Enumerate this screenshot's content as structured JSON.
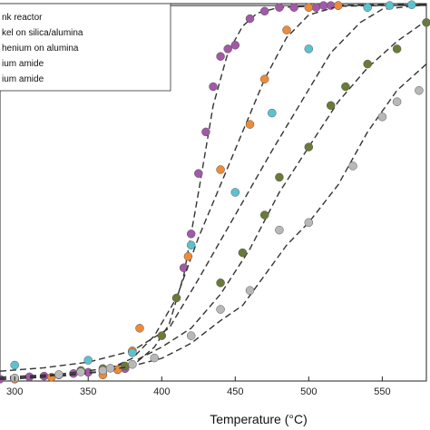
{
  "chart_data": {
    "type": "scatter",
    "title": "",
    "xlabel": "Temperature (°C)",
    "ylabel": "",
    "xlim": [
      290,
      580
    ],
    "ylim": [
      0,
      100
    ],
    "x_ticks": [
      300,
      350,
      400,
      450,
      500,
      550
    ],
    "grid": false,
    "legend_position": "top-left",
    "legend_visible_text": [
      "nk reactor",
      "kel on silica/alumina",
      "henium on alumina",
      "ium amide",
      "ium amide"
    ],
    "series": [
      {
        "color": "#a259a8",
        "points": [
          [
            290,
            0.5
          ],
          [
            300,
            0.7
          ],
          [
            310,
            1.1
          ],
          [
            320,
            1.3
          ],
          [
            330,
            1.6
          ],
          [
            340,
            2.0
          ],
          [
            350,
            2.3
          ],
          [
            360,
            2.6
          ],
          [
            370,
            3.0
          ],
          [
            375,
            3.3
          ],
          [
            415,
            30
          ],
          [
            420,
            39
          ],
          [
            425,
            55
          ],
          [
            430,
            66
          ],
          [
            435,
            78
          ],
          [
            440,
            86
          ],
          [
            445,
            88
          ],
          [
            450,
            89
          ],
          [
            460,
            96
          ],
          [
            470,
            98
          ],
          [
            480,
            99
          ],
          [
            490,
            99
          ],
          [
            505,
            99
          ],
          [
            510,
            99.5
          ],
          [
            515,
            99.5
          ],
          [
            520,
            99.5
          ]
        ],
        "curve": [
          [
            290,
            0.4
          ],
          [
            330,
            1.3
          ],
          [
            360,
            2.5
          ],
          [
            380,
            4
          ],
          [
            395,
            9
          ],
          [
            405,
            15
          ],
          [
            415,
            28
          ],
          [
            425,
            50
          ],
          [
            435,
            73
          ],
          [
            445,
            87
          ],
          [
            455,
            94
          ],
          [
            465,
            97.5
          ],
          [
            480,
            99
          ],
          [
            520,
            99.6
          ],
          [
            580,
            99.8
          ]
        ]
      },
      {
        "color": "#ef8a36",
        "points": [
          [
            300,
            0.5
          ],
          [
            325,
            1.0
          ],
          [
            360,
            1.6
          ],
          [
            370,
            3.0
          ],
          [
            380,
            8
          ],
          [
            385,
            14
          ],
          [
            418,
            33
          ],
          [
            440,
            56
          ],
          [
            460,
            68
          ],
          [
            470,
            80
          ],
          [
            485,
            93
          ],
          [
            500,
            99
          ],
          [
            520,
            99.5
          ]
        ],
        "curve": [
          [
            290,
            0.4
          ],
          [
            330,
            1.2
          ],
          [
            360,
            2.5
          ],
          [
            380,
            6
          ],
          [
            395,
            12
          ],
          [
            410,
            22
          ],
          [
            425,
            38
          ],
          [
            440,
            52
          ],
          [
            455,
            66
          ],
          [
            470,
            80
          ],
          [
            485,
            91
          ],
          [
            500,
            97
          ],
          [
            520,
            99.3
          ],
          [
            580,
            99.7
          ]
        ]
      },
      {
        "color": "#5bc3cf",
        "points": [
          [
            300,
            4.2
          ],
          [
            350,
            5.5
          ],
          [
            380,
            7.5
          ],
          [
            420,
            36
          ],
          [
            450,
            50
          ],
          [
            475,
            71
          ],
          [
            500,
            88
          ],
          [
            540,
            99
          ],
          [
            555,
            99.5
          ],
          [
            570,
            99.7
          ]
        ],
        "curve": [
          [
            290,
            2.6
          ],
          [
            320,
            3.5
          ],
          [
            350,
            5
          ],
          [
            380,
            8
          ],
          [
            405,
            14
          ],
          [
            425,
            27
          ],
          [
            450,
            44
          ],
          [
            475,
            61
          ],
          [
            495,
            74
          ],
          [
            515,
            87
          ],
          [
            535,
            95
          ],
          [
            550,
            98.5
          ],
          [
            580,
            99.7
          ]
        ]
      },
      {
        "color": "#6a7a38",
        "points": [
          [
            345,
            2.8
          ],
          [
            360,
            3.3
          ],
          [
            375,
            4.0
          ],
          [
            400,
            12
          ],
          [
            410,
            22
          ],
          [
            440,
            26
          ],
          [
            455,
            34
          ],
          [
            470,
            44
          ],
          [
            480,
            54
          ],
          [
            500,
            62
          ],
          [
            515,
            73
          ],
          [
            525,
            78
          ],
          [
            540,
            84
          ],
          [
            560,
            88
          ],
          [
            580,
            95
          ]
        ],
        "curve": [
          [
            290,
            1
          ],
          [
            330,
            1.8
          ],
          [
            360,
            3.2
          ],
          [
            380,
            5
          ],
          [
            400,
            9
          ],
          [
            420,
            14
          ],
          [
            440,
            23
          ],
          [
            460,
            35
          ],
          [
            480,
            50
          ],
          [
            500,
            62
          ],
          [
            520,
            74
          ],
          [
            540,
            83
          ],
          [
            560,
            90
          ],
          [
            580,
            95.5
          ]
        ]
      },
      {
        "color": "#b8b8b8",
        "points": [
          [
            300,
            0.8
          ],
          [
            330,
            1.7
          ],
          [
            345,
            2.4
          ],
          [
            360,
            2.8
          ],
          [
            365,
            3.4
          ],
          [
            380,
            4.4
          ],
          [
            395,
            6.1
          ],
          [
            420,
            12
          ],
          [
            440,
            19
          ],
          [
            460,
            24
          ],
          [
            480,
            40
          ],
          [
            500,
            42
          ],
          [
            530,
            57
          ],
          [
            550,
            70
          ],
          [
            560,
            74
          ],
          [
            575,
            77
          ]
        ],
        "curve": [
          [
            290,
            0.6
          ],
          [
            330,
            1.5
          ],
          [
            360,
            2.6
          ],
          [
            380,
            4
          ],
          [
            400,
            6
          ],
          [
            420,
            10
          ],
          [
            440,
            16
          ],
          [
            455,
            20
          ],
          [
            470,
            28
          ],
          [
            485,
            36
          ],
          [
            500,
            42
          ],
          [
            520,
            52
          ],
          [
            540,
            66
          ],
          [
            560,
            77
          ],
          [
            580,
            84
          ]
        ]
      }
    ],
    "top_reference_line": 99.5
  }
}
